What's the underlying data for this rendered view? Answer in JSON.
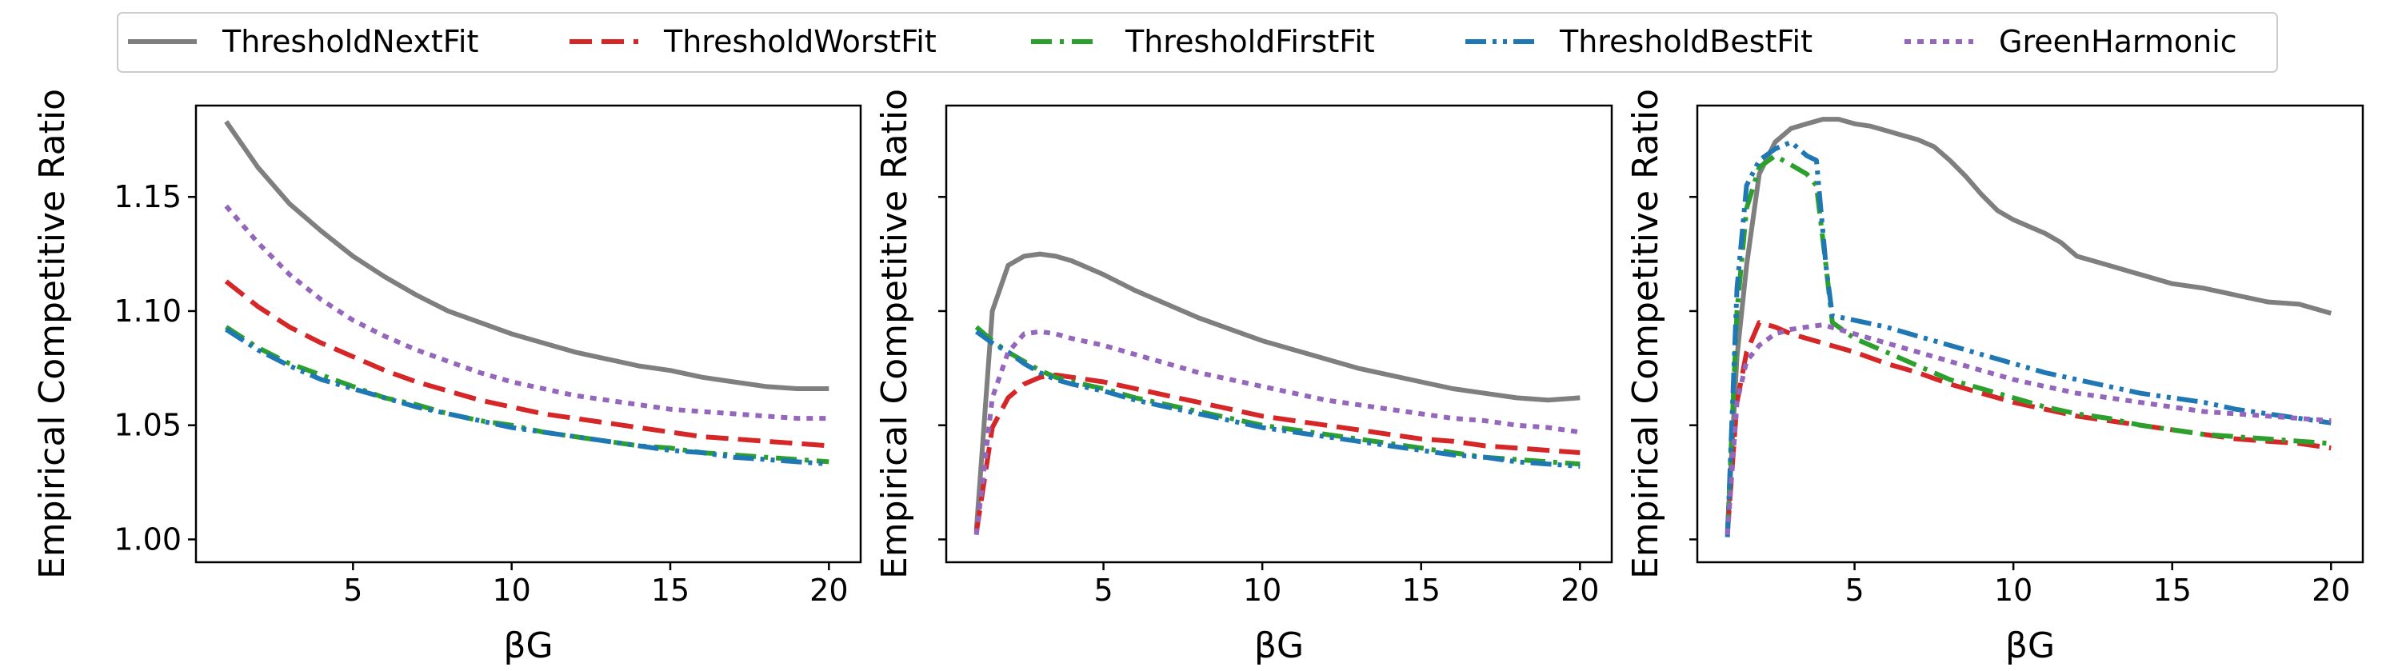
{
  "chart_data": [
    {
      "type": "line",
      "xlabel": "βG",
      "ylabel": "Empirical Competitive Ratio",
      "xlim": [
        0.05,
        21.0
      ],
      "ylim": [
        0.99,
        1.19
      ],
      "xticks": [
        5,
        10,
        15,
        20
      ],
      "xtick_labels": [
        "5",
        "10",
        "15",
        "20"
      ],
      "yticks": [
        1.0,
        1.05,
        1.1,
        1.15
      ],
      "ytick_labels": [
        "1.00",
        "1.05",
        "1.10",
        "1.15"
      ],
      "grid": false,
      "series": [
        {
          "name": "ThresholdNextFit",
          "x": [
            1,
            2,
            3,
            4,
            5,
            6,
            7,
            8,
            9,
            10,
            11,
            12,
            13,
            14,
            15,
            16,
            17,
            18,
            19,
            20
          ],
          "values": [
            1.183,
            1.163,
            1.147,
            1.135,
            1.124,
            1.115,
            1.107,
            1.1,
            1.095,
            1.09,
            1.086,
            1.082,
            1.079,
            1.076,
            1.074,
            1.071,
            1.069,
            1.067,
            1.066,
            1.066
          ]
        },
        {
          "name": "ThresholdWorstFit",
          "x": [
            1,
            2,
            3,
            4,
            5,
            6,
            7,
            8,
            9,
            10,
            11,
            12,
            13,
            14,
            15,
            16,
            17,
            18,
            19,
            20
          ],
          "values": [
            1.113,
            1.102,
            1.093,
            1.086,
            1.08,
            1.074,
            1.069,
            1.065,
            1.061,
            1.058,
            1.055,
            1.053,
            1.051,
            1.049,
            1.047,
            1.045,
            1.044,
            1.043,
            1.042,
            1.041
          ]
        },
        {
          "name": "ThresholdFirstFit",
          "x": [
            1,
            2,
            3,
            4,
            5,
            6,
            7,
            8,
            9,
            10,
            11,
            12,
            13,
            14,
            15,
            16,
            17,
            18,
            19,
            20
          ],
          "values": [
            1.093,
            1.084,
            1.077,
            1.072,
            1.067,
            1.062,
            1.059,
            1.055,
            1.052,
            1.05,
            1.047,
            1.045,
            1.043,
            1.041,
            1.04,
            1.038,
            1.037,
            1.036,
            1.035,
            1.034
          ]
        },
        {
          "name": "ThresholdBestFit",
          "x": [
            1,
            2,
            3,
            4,
            5,
            6,
            7,
            8,
            9,
            10,
            11,
            12,
            13,
            14,
            15,
            16,
            17,
            18,
            19,
            20
          ],
          "values": [
            1.092,
            1.083,
            1.076,
            1.07,
            1.066,
            1.062,
            1.058,
            1.055,
            1.052,
            1.049,
            1.047,
            1.045,
            1.043,
            1.041,
            1.039,
            1.038,
            1.036,
            1.035,
            1.034,
            1.033
          ]
        },
        {
          "name": "GreenHarmonic",
          "x": [
            1,
            2,
            3,
            4,
            5,
            6,
            7,
            8,
            9,
            10,
            11,
            12,
            13,
            14,
            15,
            16,
            17,
            18,
            19,
            20
          ],
          "values": [
            1.146,
            1.13,
            1.116,
            1.105,
            1.096,
            1.089,
            1.083,
            1.078,
            1.073,
            1.069,
            1.066,
            1.063,
            1.061,
            1.059,
            1.057,
            1.056,
            1.055,
            1.054,
            1.053,
            1.053
          ]
        }
      ]
    },
    {
      "type": "line",
      "xlabel": "βG",
      "ylabel": "Empirical Competitive Ratio",
      "xlim": [
        0.05,
        21.0
      ],
      "ylim": [
        0.99,
        1.19
      ],
      "xticks": [
        5,
        10,
        15,
        20
      ],
      "xtick_labels": [
        "5",
        "10",
        "15",
        "20"
      ],
      "yticks": [
        1.0,
        1.05,
        1.1,
        1.15
      ],
      "ytick_labels": [
        "",
        "",
        "",
        ""
      ],
      "grid": false,
      "series": [
        {
          "name": "ThresholdNextFit",
          "x": [
            1,
            1.5,
            2,
            2.5,
            3,
            3.5,
            4,
            5,
            6,
            7,
            8,
            9,
            10,
            11,
            12,
            13,
            14,
            15,
            16,
            17,
            18,
            19,
            20
          ],
          "values": [
            1.004,
            1.1,
            1.12,
            1.124,
            1.125,
            1.124,
            1.122,
            1.116,
            1.109,
            1.103,
            1.097,
            1.092,
            1.087,
            1.083,
            1.079,
            1.075,
            1.072,
            1.069,
            1.066,
            1.064,
            1.062,
            1.061,
            1.062
          ]
        },
        {
          "name": "ThresholdWorstFit",
          "x": [
            1,
            1.5,
            2,
            2.5,
            3,
            3.5,
            4,
            5,
            6,
            7,
            8,
            9,
            10,
            11,
            12,
            13,
            14,
            15,
            16,
            17,
            18,
            19,
            20
          ],
          "values": [
            1.003,
            1.049,
            1.062,
            1.068,
            1.071,
            1.072,
            1.071,
            1.069,
            1.066,
            1.063,
            1.06,
            1.057,
            1.054,
            1.052,
            1.05,
            1.048,
            1.046,
            1.044,
            1.043,
            1.041,
            1.04,
            1.039,
            1.038
          ]
        },
        {
          "name": "ThresholdFirstFit",
          "x": [
            1,
            1.5,
            2,
            2.5,
            3,
            3.5,
            4,
            5,
            6,
            7,
            8,
            9,
            10,
            11,
            12,
            13,
            14,
            15,
            16,
            17,
            18,
            19,
            20
          ],
          "values": [
            1.093,
            1.087,
            1.082,
            1.078,
            1.074,
            1.071,
            1.069,
            1.066,
            1.062,
            1.059,
            1.056,
            1.053,
            1.05,
            1.048,
            1.046,
            1.044,
            1.042,
            1.04,
            1.038,
            1.036,
            1.035,
            1.034,
            1.033
          ]
        },
        {
          "name": "ThresholdBestFit",
          "x": [
            1,
            1.5,
            2,
            2.5,
            3,
            3.5,
            4,
            5,
            6,
            7,
            8,
            9,
            10,
            11,
            12,
            13,
            14,
            15,
            16,
            17,
            18,
            19,
            20
          ],
          "values": [
            1.091,
            1.086,
            1.082,
            1.077,
            1.073,
            1.07,
            1.068,
            1.065,
            1.061,
            1.058,
            1.055,
            1.052,
            1.049,
            1.047,
            1.045,
            1.043,
            1.041,
            1.039,
            1.037,
            1.036,
            1.034,
            1.033,
            1.032
          ]
        },
        {
          "name": "GreenHarmonic",
          "x": [
            1,
            1.5,
            2,
            2.5,
            3,
            3.5,
            4,
            5,
            6,
            7,
            8,
            9,
            10,
            11,
            12,
            13,
            14,
            15,
            16,
            17,
            18,
            19,
            20
          ],
          "values": [
            1.002,
            1.062,
            1.082,
            1.09,
            1.091,
            1.09,
            1.088,
            1.085,
            1.081,
            1.077,
            1.073,
            1.07,
            1.067,
            1.064,
            1.061,
            1.059,
            1.057,
            1.055,
            1.053,
            1.052,
            1.05,
            1.049,
            1.047
          ]
        }
      ]
    },
    {
      "type": "line",
      "xlabel": "βG",
      "ylabel": "Empirical Competitive Ratio",
      "xlim": [
        0.05,
        21.0
      ],
      "ylim": [
        0.99,
        1.19
      ],
      "xticks": [
        5,
        10,
        15,
        20
      ],
      "xtick_labels": [
        "5",
        "10",
        "15",
        "20"
      ],
      "yticks": [
        1.0,
        1.05,
        1.1,
        1.15
      ],
      "ytick_labels": [
        "",
        "",
        "",
        ""
      ],
      "grid": false,
      "series": [
        {
          "name": "ThresholdNextFit",
          "x": [
            1,
            1.3,
            1.6,
            2,
            2.5,
            3,
            3.5,
            4,
            4.5,
            5,
            5.5,
            6,
            6.5,
            7,
            7.5,
            8,
            8.5,
            9,
            9.5,
            10,
            11,
            11.5,
            12,
            13,
            14,
            15,
            16,
            17,
            18,
            19,
            20
          ],
          "values": [
            1.004,
            1.08,
            1.12,
            1.16,
            1.174,
            1.18,
            1.182,
            1.184,
            1.184,
            1.182,
            1.181,
            1.179,
            1.177,
            1.175,
            1.172,
            1.166,
            1.159,
            1.151,
            1.144,
            1.14,
            1.134,
            1.13,
            1.124,
            1.12,
            1.116,
            1.112,
            1.11,
            1.107,
            1.104,
            1.103,
            1.099
          ]
        },
        {
          "name": "ThresholdWorstFit",
          "x": [
            1,
            1.3,
            1.6,
            2,
            2.5,
            3,
            3.5,
            4,
            5,
            6,
            7,
            8,
            9,
            10,
            11,
            12,
            13,
            14,
            15,
            16,
            17,
            18,
            19,
            20
          ],
          "values": [
            1.003,
            1.06,
            1.082,
            1.095,
            1.093,
            1.09,
            1.088,
            1.086,
            1.082,
            1.077,
            1.073,
            1.068,
            1.064,
            1.06,
            1.057,
            1.054,
            1.052,
            1.05,
            1.048,
            1.046,
            1.044,
            1.043,
            1.042,
            1.04
          ]
        },
        {
          "name": "ThresholdFirstFit",
          "x": [
            1,
            1.3,
            1.6,
            2,
            2.5,
            3,
            3.5,
            3.8,
            4.1,
            4.3,
            5,
            6,
            7,
            8,
            9,
            10,
            11,
            12,
            13,
            14,
            15,
            16,
            17,
            18,
            19,
            20
          ],
          "values": [
            1.002,
            1.1,
            1.145,
            1.163,
            1.168,
            1.164,
            1.16,
            1.155,
            1.12,
            1.095,
            1.088,
            1.082,
            1.076,
            1.07,
            1.066,
            1.062,
            1.058,
            1.055,
            1.053,
            1.05,
            1.048,
            1.046,
            1.045,
            1.044,
            1.043,
            1.042
          ]
        },
        {
          "name": "ThresholdBestFit",
          "x": [
            1,
            1.3,
            1.6,
            2,
            2.5,
            3,
            3.5,
            3.8,
            4.1,
            4.3,
            5,
            6,
            7,
            8,
            9,
            10,
            11,
            12,
            13,
            14,
            15,
            16,
            17,
            18,
            19,
            20
          ],
          "values": [
            1.001,
            1.11,
            1.155,
            1.166,
            1.171,
            1.174,
            1.168,
            1.166,
            1.12,
            1.098,
            1.096,
            1.093,
            1.089,
            1.085,
            1.081,
            1.077,
            1.073,
            1.07,
            1.067,
            1.064,
            1.062,
            1.06,
            1.057,
            1.055,
            1.053,
            1.051
          ]
        },
        {
          "name": "GreenHarmonic",
          "x": [
            1,
            1.3,
            1.6,
            2,
            2.5,
            3,
            3.5,
            4,
            5,
            6,
            7,
            8,
            9,
            10,
            11,
            12,
            13,
            14,
            15,
            16,
            17,
            18,
            19,
            20
          ],
          "values": [
            1.002,
            1.06,
            1.078,
            1.085,
            1.09,
            1.092,
            1.093,
            1.094,
            1.09,
            1.086,
            1.082,
            1.078,
            1.074,
            1.07,
            1.067,
            1.064,
            1.062,
            1.06,
            1.058,
            1.056,
            1.055,
            1.054,
            1.053,
            1.052
          ]
        }
      ]
    }
  ],
  "legend": {
    "placement": "top-center",
    "entries": [
      {
        "label": "ThresholdNextFit",
        "color": "#7f7f7f",
        "style": "solid"
      },
      {
        "label": "ThresholdWorstFit",
        "color": "#d62728",
        "style": "dashed"
      },
      {
        "label": "ThresholdFirstFit",
        "color": "#2ca02c",
        "style": "dashdot"
      },
      {
        "label": "ThresholdBestFit",
        "color": "#1f77b4",
        "style": "dashdotdot"
      },
      {
        "label": "GreenHarmonic",
        "color": "#9467bd",
        "style": "dotted"
      }
    ]
  }
}
